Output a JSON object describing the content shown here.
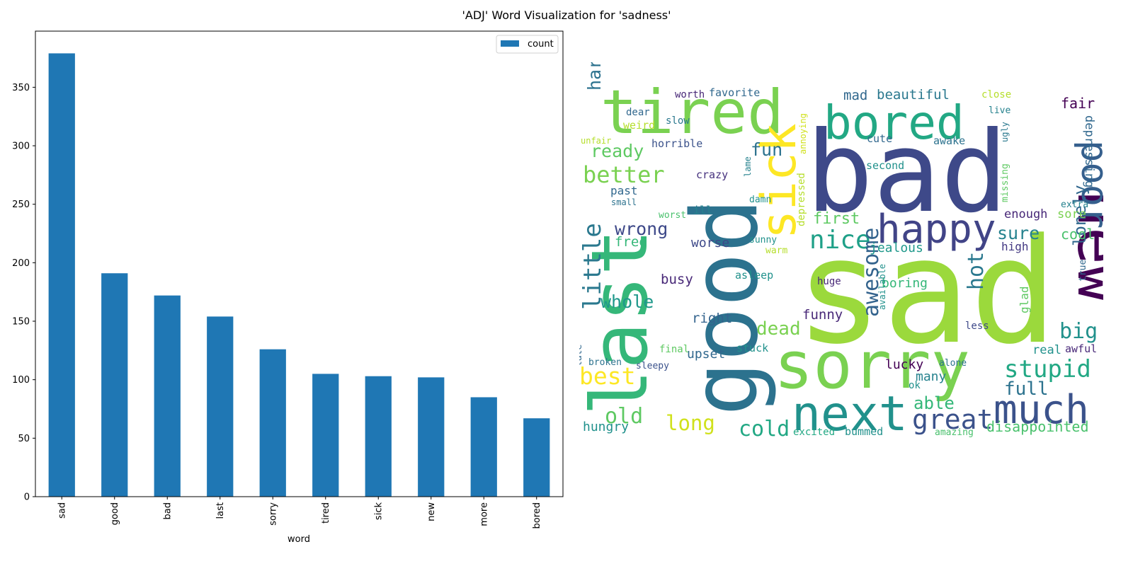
{
  "figure": {
    "title": "'ADJ' Word Visualization for 'sadness'"
  },
  "chart_data": {
    "type": "bar",
    "categories": [
      "sad",
      "good",
      "bad",
      "last",
      "sorry",
      "tired",
      "sick",
      "new",
      "more",
      "bored"
    ],
    "series": [
      {
        "name": "count",
        "values": [
          379,
          191,
          172,
          154,
          126,
          105,
          103,
          102,
          85,
          67
        ],
        "color": "#1f77b4"
      }
    ],
    "xlabel": "word",
    "ylabel": "",
    "ylim": [
      0,
      398
    ],
    "yticks": [
      0,
      50,
      100,
      150,
      200,
      250,
      300,
      350
    ],
    "legend": "top-right",
    "grid": false
  },
  "wordcloud": {
    "words": [
      {
        "text": "sad",
        "color": "#9bd93c"
      },
      {
        "text": "bad",
        "color": "#3e4989"
      },
      {
        "text": "good",
        "color": "#2c728e"
      },
      {
        "text": "last",
        "color": "#35b779"
      },
      {
        "text": "sorry",
        "color": "#7ad151"
      },
      {
        "text": "tired",
        "color": "#7ad151"
      },
      {
        "text": "new",
        "color": "#440154"
      },
      {
        "text": "next",
        "color": "#21918c"
      },
      {
        "text": "sick",
        "color": "#fde725"
      },
      {
        "text": "bored",
        "color": "#22a884"
      },
      {
        "text": "happy",
        "color": "#414487"
      },
      {
        "text": "much",
        "color": "#3b528b"
      },
      {
        "text": "poor",
        "color": "#355f8d"
      },
      {
        "text": "nice",
        "color": "#1fa088"
      },
      {
        "text": "great",
        "color": "#3b528b"
      },
      {
        "text": "stupid",
        "color": "#22a884"
      },
      {
        "text": "little",
        "color": "#2a788e"
      },
      {
        "text": "better",
        "color": "#7ad151"
      },
      {
        "text": "awesome",
        "color": "#33638d"
      },
      {
        "text": "best",
        "color": "#fde725"
      },
      {
        "text": "big",
        "color": "#21918c"
      },
      {
        "text": "hot",
        "color": "#2a788e"
      },
      {
        "text": "old",
        "color": "#5ec962"
      },
      {
        "text": "cold",
        "color": "#22a884"
      },
      {
        "text": "long",
        "color": "#d0e11c"
      },
      {
        "text": "full",
        "color": "#2c728e"
      },
      {
        "text": "whole",
        "color": "#1f988b"
      },
      {
        "text": "lonely",
        "color": "#31688e"
      },
      {
        "text": "dead",
        "color": "#7ad151"
      },
      {
        "text": "wrong",
        "color": "#3e4989"
      },
      {
        "text": "sure",
        "color": "#26828e"
      },
      {
        "text": "fun",
        "color": "#2c728e"
      },
      {
        "text": "ready",
        "color": "#5ec962"
      },
      {
        "text": "hard",
        "color": "#2c728e"
      },
      {
        "text": "able",
        "color": "#35b779"
      },
      {
        "text": "first",
        "color": "#5ec962"
      },
      {
        "text": "cool",
        "color": "#4ac16d"
      },
      {
        "text": "disappointed",
        "color": "#4ac16d"
      },
      {
        "text": "beautiful",
        "color": "#2a788e"
      },
      {
        "text": "mad",
        "color": "#31688e"
      },
      {
        "text": "fair",
        "color": "#440154"
      },
      {
        "text": "depressing",
        "color": "#31688e"
      },
      {
        "text": "boring",
        "color": "#35b779"
      },
      {
        "text": "jealous",
        "color": "#1f988b"
      },
      {
        "text": "busy",
        "color": "#482878"
      },
      {
        "text": "right",
        "color": "#33638d"
      },
      {
        "text": "worse",
        "color": "#3e4989"
      },
      {
        "text": "upset",
        "color": "#31688e"
      },
      {
        "text": "funny",
        "color": "#482878"
      },
      {
        "text": "lucky",
        "color": "#440154"
      },
      {
        "text": "many",
        "color": "#26828e"
      },
      {
        "text": "hungry",
        "color": "#21918c"
      },
      {
        "text": "free",
        "color": "#35b779"
      },
      {
        "text": "past",
        "color": "#31688e"
      },
      {
        "text": "enough",
        "color": "#482878"
      },
      {
        "text": "sore",
        "color": "#7ad151"
      },
      {
        "text": "real",
        "color": "#21918c"
      },
      {
        "text": "awful",
        "color": "#482878"
      },
      {
        "text": "high",
        "color": "#443983"
      },
      {
        "text": "glad",
        "color": "#5ec962"
      },
      {
        "text": "crazy",
        "color": "#46327e"
      },
      {
        "text": "horrible",
        "color": "#3b528b"
      },
      {
        "text": "weird",
        "color": "#b5de2b"
      },
      {
        "text": "favorite",
        "color": "#31688e"
      },
      {
        "text": "worth",
        "color": "#482878"
      },
      {
        "text": "dear",
        "color": "#31688e"
      },
      {
        "text": "slow",
        "color": "#2a788e"
      },
      {
        "text": "unfair",
        "color": "#b5de2b"
      },
      {
        "text": "annoying",
        "color": "#d0e11c"
      },
      {
        "text": "lame",
        "color": "#26828e"
      },
      {
        "text": "depressed",
        "color": "#b5de2b"
      },
      {
        "text": "second",
        "color": "#21918c"
      },
      {
        "text": "cute",
        "color": "#31688e"
      },
      {
        "text": "awake",
        "color": "#2c728e"
      },
      {
        "text": "close",
        "color": "#b5de2b"
      },
      {
        "text": "live",
        "color": "#26828e"
      },
      {
        "text": "ugly",
        "color": "#2a788e"
      },
      {
        "text": "missing",
        "color": "#5ec962"
      },
      {
        "text": "extra",
        "color": "#26828e"
      },
      {
        "text": "true",
        "color": "#31688e"
      },
      {
        "text": "small",
        "color": "#2c728e"
      },
      {
        "text": "worst",
        "color": "#4ac16d"
      },
      {
        "text": "ill",
        "color": "#26828e"
      },
      {
        "text": "damn",
        "color": "#21918c"
      },
      {
        "text": "sunny",
        "color": "#21918c"
      },
      {
        "text": "warm",
        "color": "#b5de2b"
      },
      {
        "text": "asleep",
        "color": "#21918c"
      },
      {
        "text": "huge",
        "color": "#482878"
      },
      {
        "text": "available",
        "color": "#21918c"
      },
      {
        "text": "less",
        "color": "#3e4989"
      },
      {
        "text": "stuck",
        "color": "#21918c"
      },
      {
        "text": "final",
        "color": "#5ec962"
      },
      {
        "text": "late",
        "color": "#31688e"
      },
      {
        "text": "broken",
        "color": "#2c728e"
      },
      {
        "text": "sleepy",
        "color": "#3b528b"
      },
      {
        "text": "alone",
        "color": "#2c728e"
      },
      {
        "text": "ok",
        "color": "#21918c"
      },
      {
        "text": "excited",
        "color": "#22a884"
      },
      {
        "text": "bummed",
        "color": "#21918c"
      },
      {
        "text": "amazing",
        "color": "#4ac16d"
      }
    ]
  }
}
